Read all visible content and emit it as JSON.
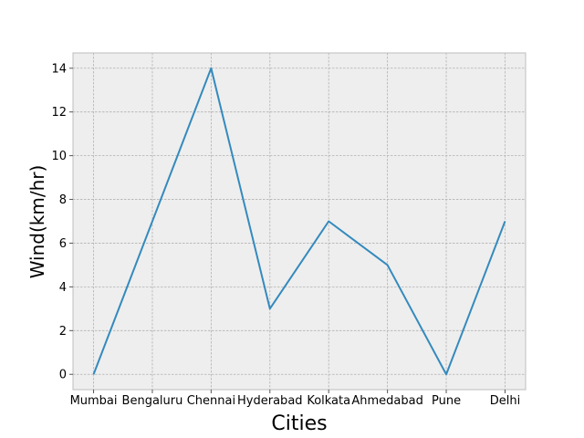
{
  "chart_data": {
    "type": "line",
    "title": "",
    "xlabel": "Cities",
    "ylabel": "Wind(km/hr)",
    "categories": [
      "Mumbai",
      "Bengaluru",
      "Chennai",
      "Hyderabad",
      "Kolkata",
      "Ahmedabad",
      "Pune",
      "Delhi"
    ],
    "series": [
      {
        "values": [
          0,
          7,
          14,
          3,
          7,
          5,
          0,
          7
        ]
      }
    ],
    "yticks": [
      0,
      2,
      4,
      6,
      8,
      10,
      12,
      14
    ],
    "ylim": [
      -0.7,
      14.7
    ],
    "grid": true,
    "line_color": "#348abd",
    "background_color": "#eeeeee",
    "grid_color": "#b2b2b2"
  }
}
